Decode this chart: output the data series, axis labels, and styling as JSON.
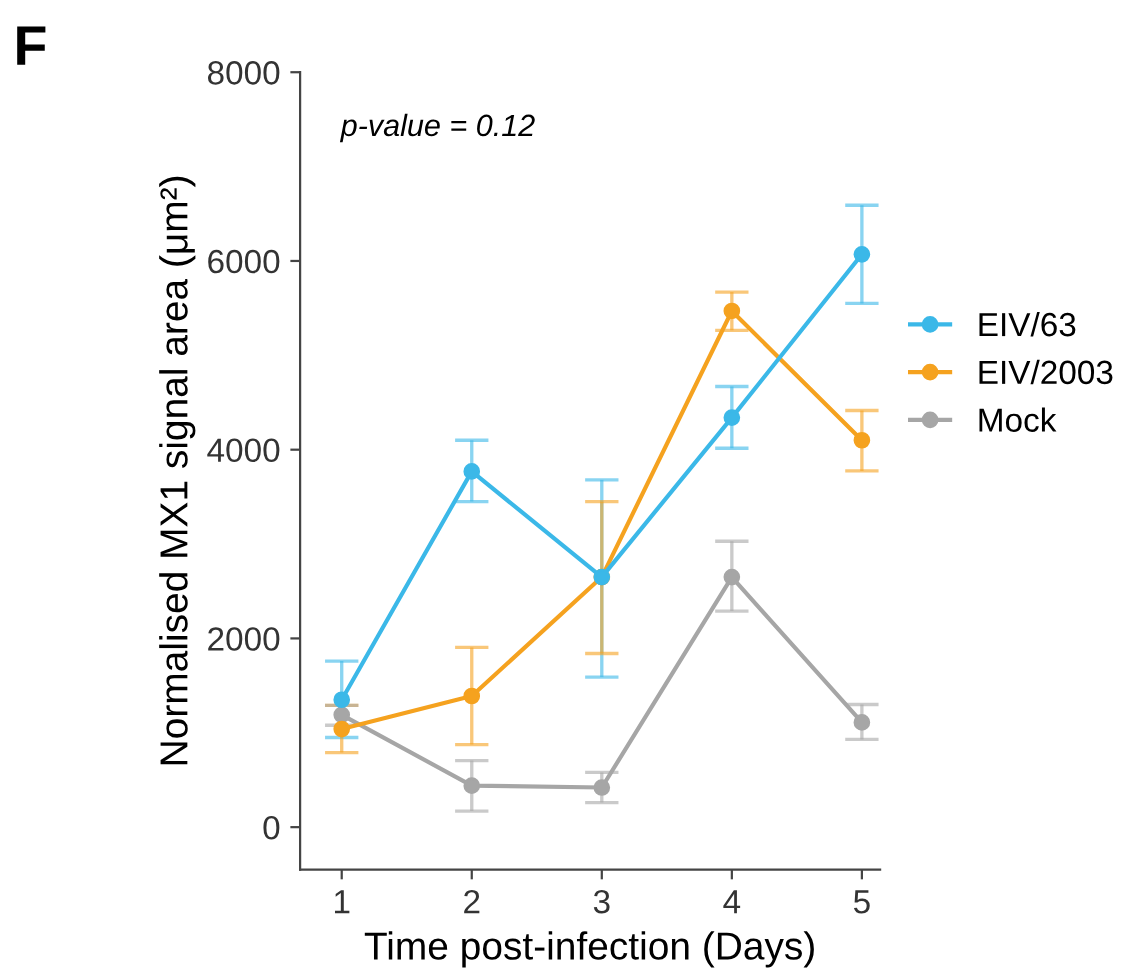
{
  "chart_data": {
    "type": "line",
    "xlabel": "Time post-infection (Days)",
    "ylabel": "Normalised MX1 signal area (μm²)",
    "annotations": [
      "F",
      "p-value = 0.12"
    ],
    "x": [
      1,
      2,
      3,
      4,
      5
    ],
    "xlim": [
      0.68,
      5.14
    ],
    "xticks": [
      1,
      2,
      3,
      4,
      5
    ],
    "ylim": [
      -450,
      8000
    ],
    "yticks": [
      0,
      2000,
      4000,
      6000,
      8000
    ],
    "marker": "circle",
    "line_style": "solid",
    "grid": false,
    "legend": "right",
    "series": [
      {
        "name": "EIV/63",
        "color": "#3bb8e8",
        "values": [
          1350,
          3770,
          2650,
          4340,
          6070
        ],
        "errors": [
          [
            950,
            1760
          ],
          [
            3450,
            4100
          ],
          [
            1590,
            3680
          ],
          [
            4015,
            4670
          ],
          [
            5550,
            6590
          ]
        ]
      },
      {
        "name": "EIV/2003",
        "color": "#f5a21f",
        "values": [
          1040,
          1390,
          2650,
          5470,
          4100
        ],
        "errors": [
          [
            790,
            1290
          ],
          [
            875,
            1905
          ],
          [
            1840,
            3450
          ],
          [
            5265,
            5670
          ],
          [
            3775,
            4415
          ]
        ]
      },
      {
        "name": "Mock",
        "color": "#a6a6a6",
        "values": [
          1190,
          440,
          420,
          2650,
          1110
        ],
        "errors": [
          [
            1080,
            1290
          ],
          [
            170,
            705
          ],
          [
            260,
            580
          ],
          [
            2290,
            3030
          ],
          [
            930,
            1300
          ]
        ]
      }
    ]
  }
}
